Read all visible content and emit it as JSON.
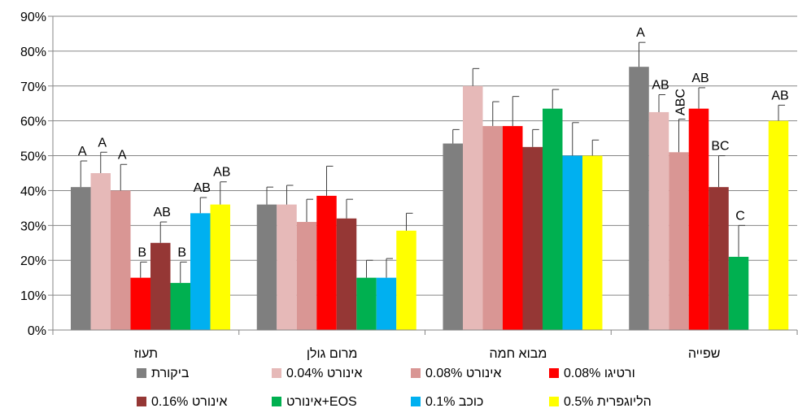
{
  "chart_data": {
    "type": "bar",
    "title": "",
    "xlabel": "",
    "ylabel": "",
    "ylim": [
      0,
      90
    ],
    "y_ticks": [
      "0%",
      "10%",
      "20%",
      "30%",
      "40%",
      "50%",
      "60%",
      "70%",
      "80%",
      "90%"
    ],
    "y_tick_values": [
      0,
      10,
      20,
      30,
      40,
      50,
      60,
      70,
      80,
      90
    ],
    "grid": true,
    "legend_position": "bottom",
    "categories": [
      "תעוז",
      "מרום גולן",
      "מבוא חמה",
      "שפייה"
    ],
    "series": [
      {
        "name": "ביקורת",
        "color": "#7f7f7f",
        "values": [
          41,
          36,
          53.5,
          75.5
        ],
        "errors": [
          7.5,
          5,
          4,
          7
        ],
        "labels": [
          "A",
          "",
          "",
          "A"
        ]
      },
      {
        "name": "אינורט 0.04%",
        "color": "#e6b9b8",
        "values": [
          45,
          36,
          70,
          62.5
        ],
        "errors": [
          6,
          5.5,
          5,
          5
        ],
        "labels": [
          "A",
          "",
          "",
          "AB"
        ]
      },
      {
        "name": "אינורט 0.08%",
        "color": "#d99694",
        "values": [
          40,
          31,
          58.5,
          51
        ],
        "errors": [
          7.5,
          6.5,
          7,
          9.5
        ],
        "labels": [
          "A",
          "",
          "",
          "ABC"
        ]
      },
      {
        "name": "ורטיגו 0.08%",
        "color": "#ff0000",
        "values": [
          15,
          38.5,
          58.5,
          63.5
        ],
        "errors": [
          4.5,
          8.5,
          8.5,
          6
        ],
        "labels": [
          "B",
          "",
          "",
          "AB"
        ]
      },
      {
        "name": "אינורט 0.16%",
        "color": "#953735",
        "values": [
          25,
          32,
          52.5,
          41
        ],
        "errors": [
          6,
          5.5,
          5,
          9
        ],
        "labels": [
          "AB",
          "",
          "",
          "BC"
        ]
      },
      {
        "name": "אינורט+EOS",
        "color": "#00b050",
        "values": [
          13.5,
          15,
          63.5,
          21
        ],
        "errors": [
          6,
          5,
          5.5,
          9
        ],
        "labels": [
          "B",
          "",
          "",
          "C"
        ]
      },
      {
        "name": "כוכב 0.1%",
        "color": "#00b0f0",
        "values": [
          33.5,
          15,
          50,
          0
        ],
        "errors": [
          4.5,
          5.5,
          9.5,
          0
        ],
        "labels": [
          "AB",
          "",
          "",
          ""
        ]
      },
      {
        "name": "הליוגפרית 0.5%",
        "color": "#ffff00",
        "values": [
          36,
          28.5,
          50,
          60
        ],
        "errors": [
          6.5,
          5,
          4.5,
          4.5
        ],
        "labels": [
          "AB",
          "",
          "",
          "AB"
        ]
      }
    ]
  }
}
